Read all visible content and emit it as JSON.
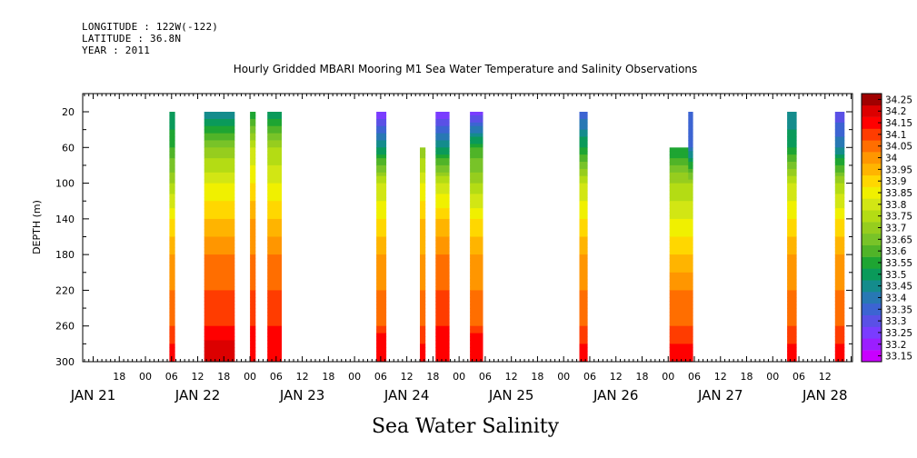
{
  "header": {
    "longitude": "LONGITUDE : 122W(-122)",
    "latitude": "LATITUDE : 36.8N",
    "year": "YEAR : 2011"
  },
  "chart_data": {
    "type": "heatmap",
    "title": "Hourly Gridded MBARI Mooring M1 Sea Water Temperature and Salinity Observations",
    "xlabel": "",
    "ylabel": "DEPTH (m)",
    "bottom_label": "Sea Water Salinity",
    "y_ticks": [
      20,
      60,
      100,
      140,
      180,
      220,
      260,
      300
    ],
    "ylim": [
      300,
      0
    ],
    "x_range_hours_from_jan21_00": [
      9.6,
      186.3
    ],
    "x_hour_ticks": [
      "18",
      "00",
      "06",
      "12",
      "18",
      "00",
      "06",
      "12",
      "18",
      "00",
      "06",
      "12",
      "18",
      "00",
      "06",
      "12",
      "18",
      "00",
      "06",
      "12",
      "18",
      "00",
      "06",
      "12",
      "18",
      "00",
      "06",
      "12"
    ],
    "x_hour_ticks_pos": [
      18,
      24,
      30,
      36,
      42,
      48,
      54,
      60,
      66,
      72,
      78,
      84,
      90,
      96,
      102,
      108,
      114,
      120,
      126,
      132,
      138,
      144,
      150,
      156,
      162,
      168,
      174,
      180
    ],
    "x_day_labels": [
      "JAN 21",
      "JAN 22",
      "JAN 23",
      "JAN 24",
      "JAN 25",
      "JAN 26",
      "JAN 27",
      "JAN 28"
    ],
    "x_day_labels_pos": [
      12,
      36,
      60,
      84,
      108,
      132,
      156,
      180
    ],
    "colorbar": {
      "levels": [
        33.15,
        33.2,
        33.25,
        33.3,
        33.35,
        33.4,
        33.45,
        33.5,
        33.55,
        33.6,
        33.65,
        33.7,
        33.75,
        33.8,
        33.85,
        33.9,
        33.95,
        34,
        34.05,
        34.1,
        34.15,
        34.2,
        34.25
      ],
      "labels": [
        "34.25",
        "34.2",
        "34.15",
        "34.1",
        "34.05",
        "34",
        "33.95",
        "33.9",
        "33.85",
        "33.8",
        "33.75",
        "33.7",
        "33.65",
        "33.6",
        "33.55",
        "33.5",
        "33.45",
        "33.4",
        "33.35",
        "33.3",
        "33.25",
        "33.2",
        "33.15"
      ],
      "colors": [
        "#c800ff",
        "#9b1eff",
        "#7a3cff",
        "#5a50e6",
        "#3c64d2",
        "#2878b4",
        "#148c8c",
        "#0a9a5a",
        "#1ea532",
        "#50b428",
        "#78c328",
        "#96cd1e",
        "#b4dc14",
        "#d2e614",
        "#f0f000",
        "#ffd700",
        "#ffb400",
        "#ff9600",
        "#ff6e00",
        "#ff3c00",
        "#ff0000",
        "#dc0000",
        "#a00000"
      ]
    },
    "segments": [
      {
        "start_h": 29.5,
        "end_h": 30.8,
        "top_depth": 20,
        "profile": [
          33.5,
          33.6,
          33.75,
          33.9,
          34.0,
          34.05,
          34.1,
          34.15,
          34.15
        ]
      },
      {
        "start_h": 37.5,
        "end_h": 44.5,
        "top_depth": 20,
        "profile": [
          33.45,
          33.7,
          33.85,
          33.95,
          34.05,
          34.1,
          34.15,
          34.22,
          34.2
        ]
      },
      {
        "start_h": 48.0,
        "end_h": 49.3,
        "top_depth": 20,
        "profile": [
          33.55,
          33.8,
          33.9,
          34.0,
          34.05,
          34.1,
          34.15,
          34.2,
          34.15
        ]
      },
      {
        "start_h": 52.0,
        "end_h": 55.3,
        "top_depth": 20,
        "profile": [
          33.5,
          33.75,
          33.85,
          33.95,
          34.05,
          34.1,
          34.15,
          34.2,
          34.15
        ]
      },
      {
        "start_h": 77.0,
        "end_h": 79.3,
        "top_depth": 20,
        "profile": [
          33.25,
          33.5,
          33.8,
          33.9,
          34.0,
          34.05,
          34.1,
          34.2,
          34.15
        ]
      },
      {
        "start_h": 87.0,
        "end_h": 88.3,
        "top_depth": 60,
        "profile": [
          33.7,
          33.7,
          33.85,
          33.95,
          34.0,
          34.05,
          34.1,
          34.15,
          34.15
        ]
      },
      {
        "start_h": 90.6,
        "end_h": 93.8,
        "top_depth": 20,
        "profile": [
          33.25,
          33.5,
          33.8,
          33.95,
          34.05,
          34.1,
          34.15,
          34.2,
          34.15
        ]
      },
      {
        "start_h": 98.5,
        "end_h": 101.5,
        "top_depth": 20,
        "profile": [
          33.25,
          33.6,
          33.75,
          33.9,
          34.0,
          34.05,
          34.1,
          34.2,
          34.15
        ]
      },
      {
        "start_h": 123.6,
        "end_h": 125.5,
        "top_depth": 20,
        "profile": [
          33.35,
          33.55,
          33.8,
          33.9,
          34.0,
          34.05,
          34.1,
          34.15,
          34.15
        ]
      },
      {
        "start_h": 144.3,
        "end_h": 149.5,
        "top_depth": 60,
        "profile": [
          33.55,
          33.55,
          33.75,
          33.85,
          33.95,
          34.05,
          34.1,
          34.15,
          34.15
        ]
      },
      {
        "start_h": 148.6,
        "end_h": 149.7,
        "top_depth": 20,
        "profile": [
          33.35,
          33.4,
          33.75,
          33.85,
          33.95,
          34.05,
          34.1,
          34.15,
          34.15
        ]
      },
      {
        "start_h": 171.3,
        "end_h": 173.5,
        "top_depth": 20,
        "profile": [
          33.45,
          33.55,
          33.8,
          33.9,
          34.0,
          34.05,
          34.1,
          34.15,
          34.15
        ]
      },
      {
        "start_h": 182.3,
        "end_h": 184.5,
        "top_depth": 20,
        "profile": [
          33.3,
          33.45,
          33.75,
          33.9,
          34.0,
          34.05,
          34.1,
          34.15,
          34.15
        ]
      }
    ],
    "profile_depths": [
      20,
      60,
      100,
      140,
      180,
      220,
      260,
      280,
      300
    ],
    "grid": false,
    "legend": "right"
  }
}
